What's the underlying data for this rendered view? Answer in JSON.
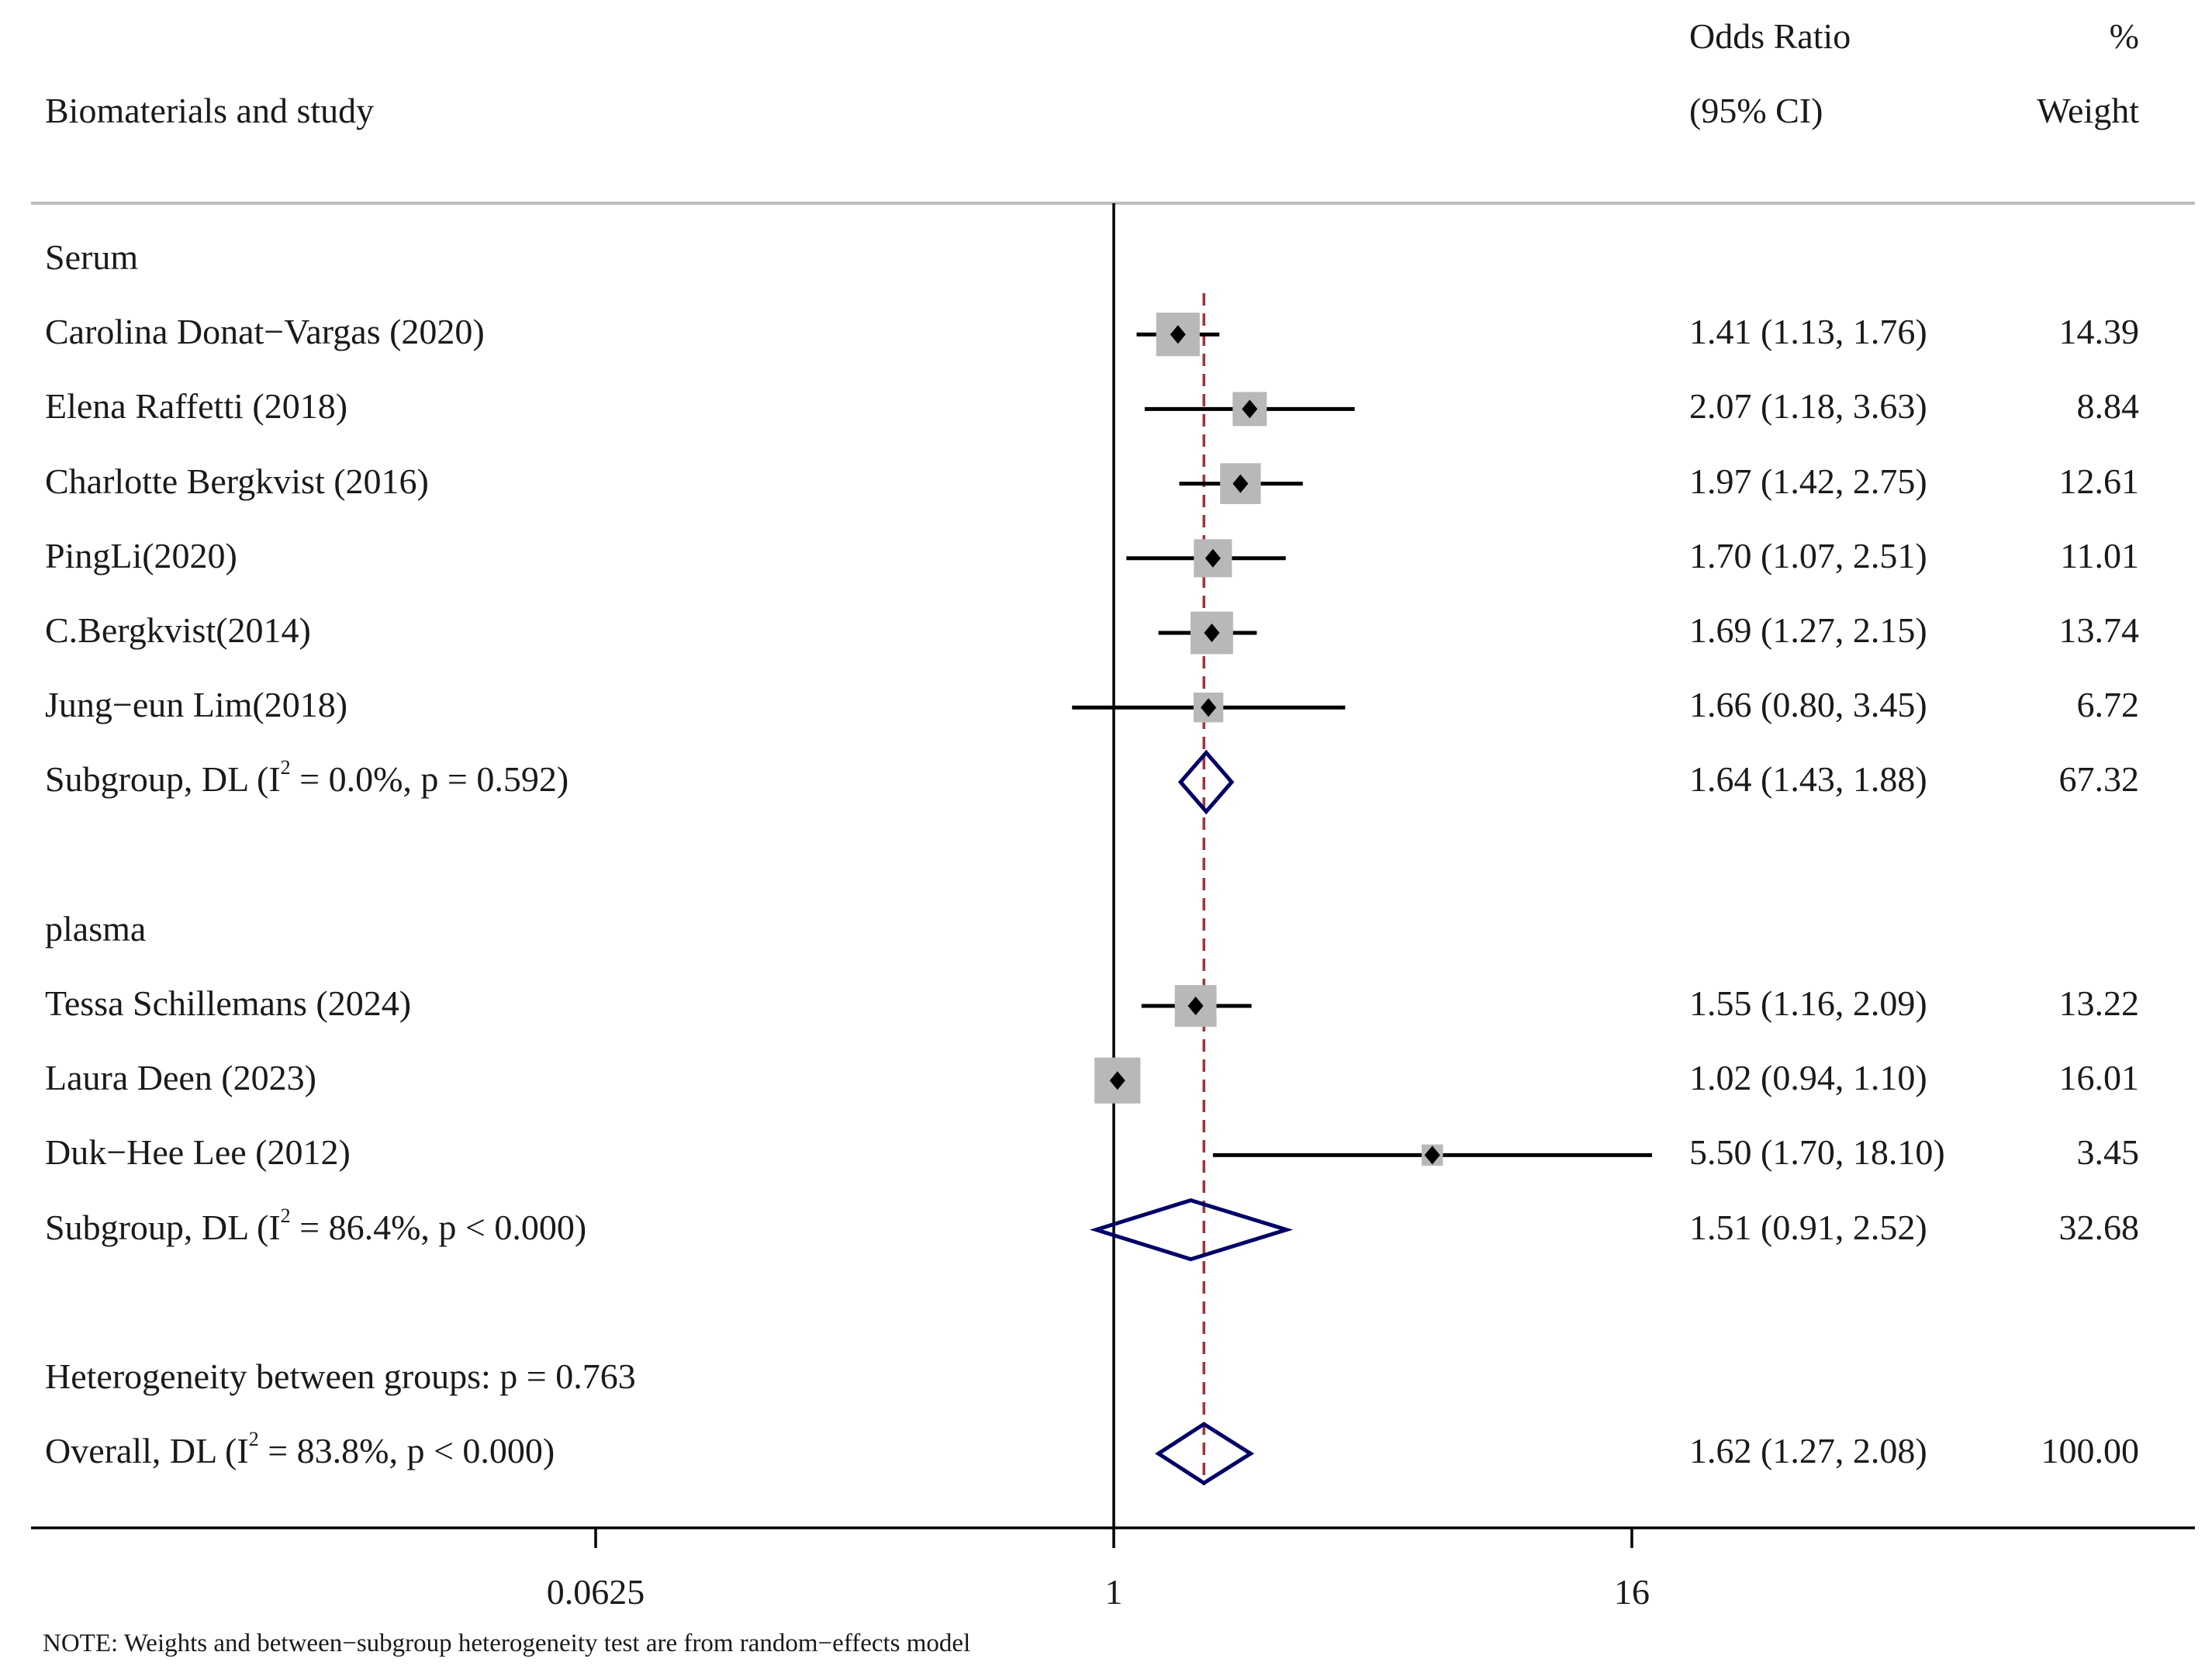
{
  "chart_data": {
    "type": "forest",
    "scale": "log",
    "xticks": [
      {
        "value": 0.0625,
        "label": "0.0625"
      },
      {
        "value": 1,
        "label": "1"
      },
      {
        "value": 16,
        "label": "16"
      }
    ],
    "reference_value": 1,
    "overall_line_value": 1.62,
    "header": {
      "study_col": "Biomaterials and study",
      "or_col_line1": "Odds Ratio",
      "or_col_line2": "(95% CI)",
      "weight_col_line1": "%",
      "weight_col_line2": "Weight"
    },
    "rows": [
      {
        "kind": "group",
        "label": "Serum"
      },
      {
        "kind": "study",
        "label": "Carolina Donat−Vargas (2020)",
        "or": 1.41,
        "lo": 1.13,
        "hi": 1.76,
        "ci_text": "1.41 (1.13, 1.76)",
        "weight": 14.39,
        "weight_text": "14.39"
      },
      {
        "kind": "study",
        "label": "Elena Raffetti (2018)",
        "or": 2.07,
        "lo": 1.18,
        "hi": 3.63,
        "ci_text": "2.07 (1.18, 3.63)",
        "weight": 8.84,
        "weight_text": "8.84"
      },
      {
        "kind": "study",
        "label": "Charlotte Bergkvist (2016)",
        "or": 1.97,
        "lo": 1.42,
        "hi": 2.75,
        "ci_text": "1.97 (1.42, 2.75)",
        "weight": 12.61,
        "weight_text": "12.61"
      },
      {
        "kind": "study",
        "label": "PingLi(2020)",
        "or": 1.7,
        "lo": 1.07,
        "hi": 2.51,
        "ci_text": "1.70 (1.07, 2.51)",
        "weight": 11.01,
        "weight_text": "11.01"
      },
      {
        "kind": "study",
        "label": "C.Bergkvist(2014)",
        "or": 1.69,
        "lo": 1.27,
        "hi": 2.15,
        "ci_text": "1.69 (1.27, 2.15)",
        "weight": 13.74,
        "weight_text": "13.74"
      },
      {
        "kind": "study",
        "label": "Jung−eun Lim(2018)",
        "or": 1.66,
        "lo": 0.8,
        "hi": 3.45,
        "ci_text": "1.66 (0.80, 3.45)",
        "weight": 6.72,
        "weight_text": "6.72"
      },
      {
        "kind": "summary",
        "label_pre": "Subgroup, DL (I",
        "label_sup": "2",
        "label_post": " = 0.0%, p = 0.592)",
        "or": 1.64,
        "lo": 1.43,
        "hi": 1.88,
        "ci_text": "1.64 (1.43, 1.88)",
        "weight": 67.32,
        "weight_text": "67.32"
      },
      {
        "kind": "blank"
      },
      {
        "kind": "group",
        "label": "plasma"
      },
      {
        "kind": "study",
        "label": "Tessa Schillemans (2024)",
        "or": 1.55,
        "lo": 1.16,
        "hi": 2.09,
        "ci_text": "1.55 (1.16, 2.09)",
        "weight": 13.22,
        "weight_text": "13.22"
      },
      {
        "kind": "study",
        "label": "Laura Deen (2023)",
        "or": 1.02,
        "lo": 0.94,
        "hi": 1.1,
        "ci_text": "1.02 (0.94, 1.10)",
        "weight": 16.01,
        "weight_text": "16.01"
      },
      {
        "kind": "study",
        "label": "Duk−Hee Lee (2012)",
        "or": 5.5,
        "lo": 1.7,
        "hi": 18.1,
        "ci_text": "5.50 (1.70, 18.10)",
        "weight": 3.45,
        "weight_text": "3.45"
      },
      {
        "kind": "summary",
        "label_pre": "Subgroup, DL (I",
        "label_sup": "2",
        "label_post": " = 86.4%, p < 0.000)",
        "or": 1.51,
        "lo": 0.91,
        "hi": 2.52,
        "ci_text": "1.51 (0.91, 2.52)",
        "weight": 32.68,
        "weight_text": "32.68"
      },
      {
        "kind": "blank"
      },
      {
        "kind": "note_row",
        "label": "Heterogeneity between groups: p = 0.763"
      },
      {
        "kind": "summary",
        "label_pre": "Overall, DL (I",
        "label_sup": "2",
        "label_post": " = 83.8%, p < 0.000)",
        "or": 1.62,
        "lo": 1.27,
        "hi": 2.08,
        "ci_text": "1.62 (1.27, 2.08)",
        "weight": 100.0,
        "weight_text": "100.00"
      }
    ],
    "footnote": "NOTE: Weights and between−subgroup heterogeneity test are from random−effects model",
    "colors": {
      "ci_line": "#000000",
      "point": "#000000",
      "weight_box": "#b8b8b8",
      "diamond": "#000066",
      "overall_line": "#a0353a",
      "axis": "#000000",
      "header_rule": "#bdbdbd"
    }
  }
}
